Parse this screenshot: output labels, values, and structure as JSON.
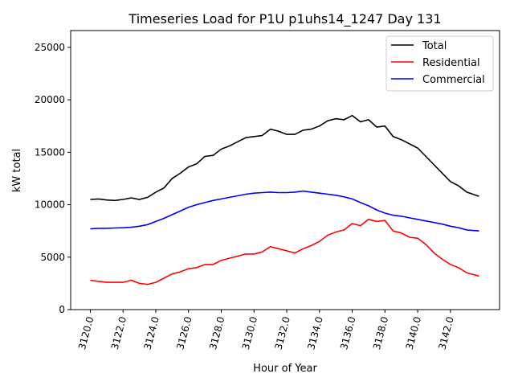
{
  "chart_data": {
    "type": "line",
    "title": "Timeseries Load for P1U p1uhs14_1247  Day 131",
    "xlabel": "Hour of Year",
    "ylabel": "kW total",
    "xlim": [
      3118.8,
      3145.0
    ],
    "ylim": [
      0,
      26600
    ],
    "xticks": [
      3120,
      3122,
      3124,
      3126,
      3128,
      3130,
      3132,
      3134,
      3136,
      3138,
      3140,
      3142
    ],
    "xtick_labels": [
      "3120.0",
      "3122.0",
      "3124.0",
      "3126.0",
      "3128.0",
      "3130.0",
      "3132.0",
      "3134.0",
      "3136.0",
      "3138.0",
      "3140.0",
      "3142.0"
    ],
    "yticks": [
      0,
      5000,
      10000,
      15000,
      20000,
      25000
    ],
    "ytick_labels": [
      "0",
      "5000",
      "10000",
      "15000",
      "20000",
      "25000"
    ],
    "legend_position": "top-right",
    "x": [
      3120,
      3120.5,
      3121,
      3121.5,
      3122,
      3122.5,
      3123,
      3123.5,
      3124,
      3124.5,
      3125,
      3125.5,
      3126,
      3126.5,
      3127,
      3127.5,
      3128,
      3128.5,
      3129,
      3129.5,
      3130,
      3130.5,
      3131,
      3131.5,
      3132,
      3132.5,
      3133,
      3133.5,
      3134,
      3134.5,
      3135,
      3135.5,
      3136,
      3136.5,
      3137,
      3137.5,
      3138,
      3138.5,
      3139,
      3139.5,
      3140,
      3140.5,
      3141,
      3141.5,
      3142,
      3142.5,
      3143,
      3143.75
    ],
    "series": [
      {
        "name": "Total",
        "color": "#000000",
        "values": [
          10500,
          10550,
          10450,
          10400,
          10500,
          10650,
          10500,
          10700,
          11200,
          11600,
          12500,
          13000,
          13600,
          13900,
          14600,
          14700,
          15300,
          15600,
          16000,
          16400,
          16500,
          16600,
          17200,
          17000,
          16700,
          16700,
          17100,
          17200,
          17500,
          18000,
          18200,
          18100,
          18500,
          17900,
          18100,
          17400,
          17500,
          16500,
          16200,
          15800,
          15400,
          14600,
          13800,
          13000,
          12200,
          11800,
          11200,
          10800
        ]
      },
      {
        "name": "Residential",
        "color": "#ff0000",
        "values": [
          2800,
          2700,
          2600,
          2600,
          2600,
          2800,
          2500,
          2400,
          2600,
          3000,
          3400,
          3600,
          3900,
          4000,
          4300,
          4300,
          4700,
          4900,
          5100,
          5300,
          5300,
          5500,
          6000,
          5800,
          5600,
          5400,
          5800,
          6100,
          6500,
          7100,
          7400,
          7600,
          8200,
          8000,
          8600,
          8400,
          8500,
          7500,
          7300,
          6900,
          6800,
          6200,
          5400,
          4800,
          4300,
          4000,
          3500,
          3200
        ]
      },
      {
        "name": "Commercial",
        "color": "#0000ff",
        "values": [
          7700,
          7750,
          7750,
          7780,
          7800,
          7850,
          7950,
          8100,
          8400,
          8700,
          9050,
          9400,
          9750,
          10000,
          10200,
          10400,
          10550,
          10700,
          10850,
          11000,
          11100,
          11150,
          11200,
          11150,
          11150,
          11200,
          11300,
          11200,
          11100,
          11000,
          10900,
          10750,
          10550,
          10200,
          9900,
          9500,
          9200,
          9000,
          8900,
          8750,
          8600,
          8450,
          8300,
          8150,
          7950,
          7800,
          7600,
          7500
        ]
      }
    ]
  }
}
